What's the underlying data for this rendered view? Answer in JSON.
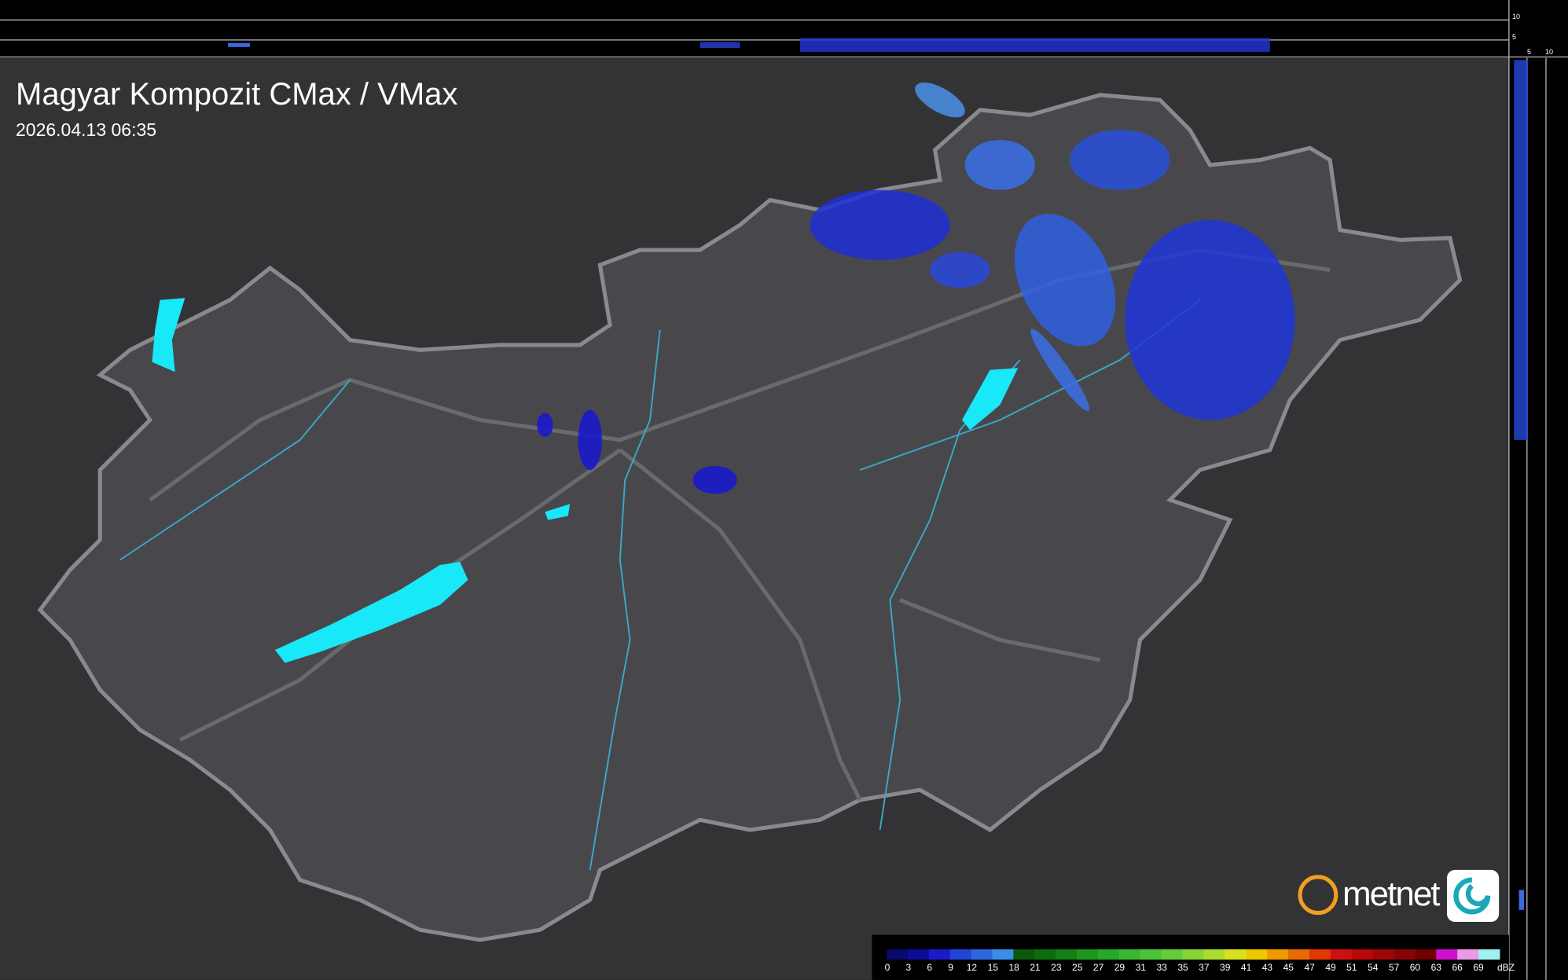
{
  "header": {
    "title": "Magyar Kompozit CMax / VMax",
    "timestamp": "2026.04.13 06:35"
  },
  "logo": "metnet",
  "profile_axes": {
    "top": [
      "10",
      "5"
    ],
    "side": [
      "5",
      "10"
    ]
  },
  "scale": {
    "labels": [
      0,
      3,
      6,
      9,
      12,
      15,
      18,
      21,
      23,
      25,
      27,
      29,
      31,
      33,
      35,
      37,
      39,
      41,
      43,
      45,
      47,
      49,
      51,
      54,
      57,
      60,
      63,
      66,
      69
    ],
    "unit": "dBZ",
    "colors": [
      "#0a0a6e",
      "#0c0c9a",
      "#1a1acc",
      "#2244d8",
      "#2e66e0",
      "#3a8ee8",
      "#0a5a0a",
      "#0e6e0e",
      "#168016",
      "#1e961e",
      "#28a828",
      "#38b830",
      "#4cc43a",
      "#66cc3a",
      "#88d438",
      "#aadc30",
      "#d8e020",
      "#f0c800",
      "#f09a00",
      "#e86a00",
      "#e03800",
      "#d01010",
      "#b80808",
      "#a00606",
      "#880404",
      "#700202",
      "#d010d0",
      "#e89ae8",
      "#a0f0f0"
    ]
  }
}
